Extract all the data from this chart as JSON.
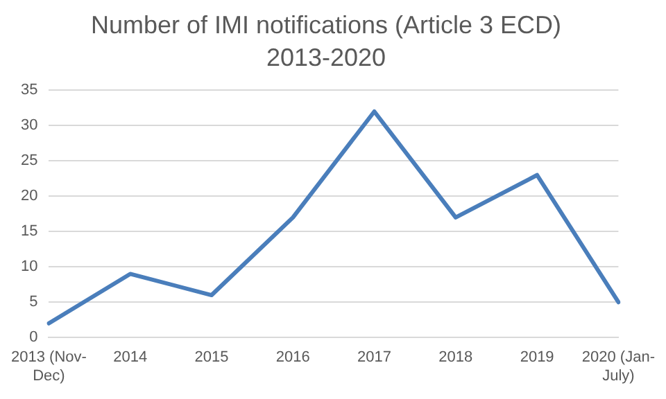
{
  "chart_data": {
    "type": "line",
    "title": "Number of IMI notifications (Article 3 ECD)",
    "subtitle": "2013-2020",
    "categories": [
      "2013 (Nov-Dec)",
      "2014",
      "2015",
      "2016",
      "2017",
      "2018",
      "2019",
      "2020 (Jan-July)"
    ],
    "series": [
      {
        "color": "#4a7ebb",
        "values": [
          2,
          9,
          6,
          17,
          32,
          17,
          23,
          5
        ]
      }
    ],
    "ylim": [
      0,
      35
    ],
    "yticks": [
      0,
      5,
      10,
      15,
      20,
      25,
      30,
      35
    ],
    "grid": "y",
    "legend": false,
    "marker": "none",
    "line_style": "solid"
  }
}
